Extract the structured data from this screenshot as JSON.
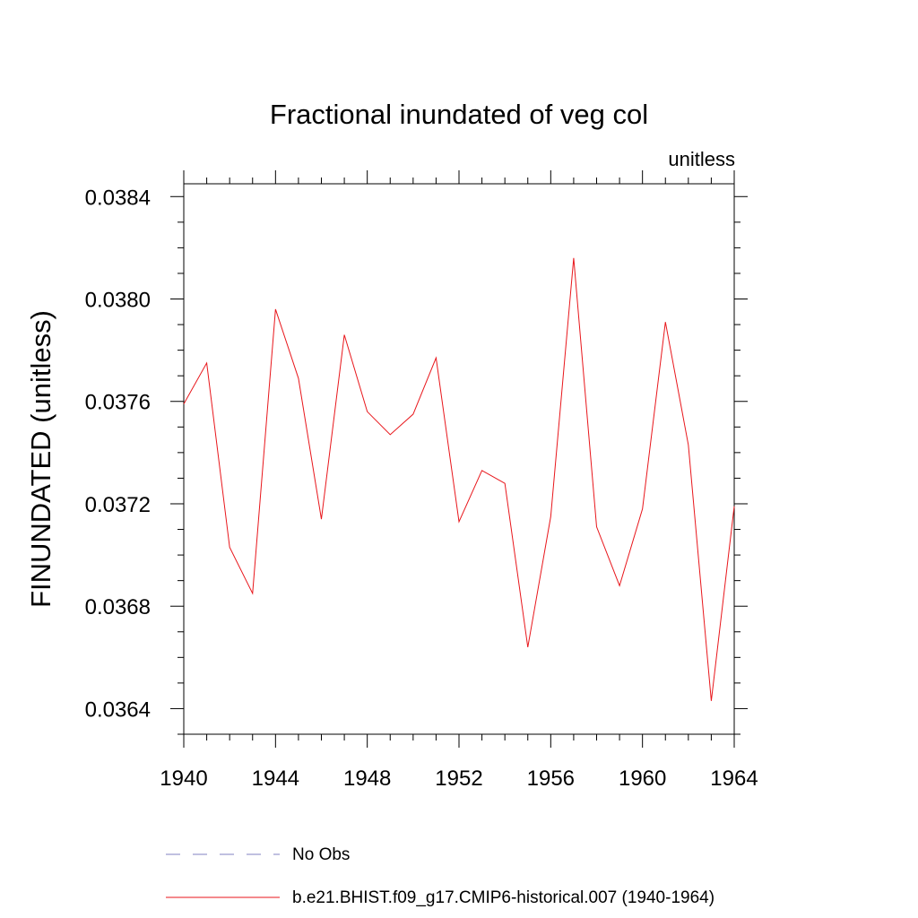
{
  "chart_data": {
    "type": "line",
    "title": "Fractional inundated of veg col",
    "units_label": "unitless",
    "xlabel": "",
    "ylabel": "FINUNDATED  (unitless)",
    "xlim": [
      1940,
      1964
    ],
    "ylim": [
      0.0363,
      0.03845
    ],
    "x_ticks": [
      1940,
      1944,
      1948,
      1952,
      1956,
      1960,
      1964
    ],
    "y_ticks": [
      0.0364,
      0.0368,
      0.0372,
      0.0376,
      0.038,
      0.0384
    ],
    "y_tick_labels": [
      "0.0364",
      "0.0368",
      "0.0372",
      "0.0376",
      "0.0380",
      "0.0384"
    ],
    "x_tick_labels": [
      "1940",
      "1944",
      "1948",
      "1952",
      "1956",
      "1960",
      "1964"
    ],
    "x": [
      1940,
      1941,
      1942,
      1943,
      1944,
      1945,
      1946,
      1947,
      1948,
      1949,
      1950,
      1951,
      1952,
      1953,
      1954,
      1955,
      1956,
      1957,
      1958,
      1959,
      1960,
      1961,
      1962,
      1963,
      1964
    ],
    "series": [
      {
        "name": "b.e21.BHIST.f09_g17.CMIP6-historical.007 (1940-1964)",
        "color": "#e8161b",
        "style": "solid",
        "values": [
          0.03759,
          0.03775,
          0.03703,
          0.03685,
          0.03796,
          0.03769,
          0.03714,
          0.03786,
          0.03756,
          0.03747,
          0.03755,
          0.03777,
          0.03713,
          0.03733,
          0.03728,
          0.03664,
          0.03715,
          0.03816,
          0.03711,
          0.03688,
          0.03718,
          0.03791,
          0.03743,
          0.03643,
          0.03719
        ]
      }
    ],
    "legend": [
      {
        "label": "No Obs",
        "color": "#8080c0",
        "style": "dashed"
      },
      {
        "label": "b.e21.BHIST.f09_g17.CMIP6-historical.007 (1940-1964)",
        "color": "#e8161b",
        "style": "solid"
      }
    ]
  }
}
